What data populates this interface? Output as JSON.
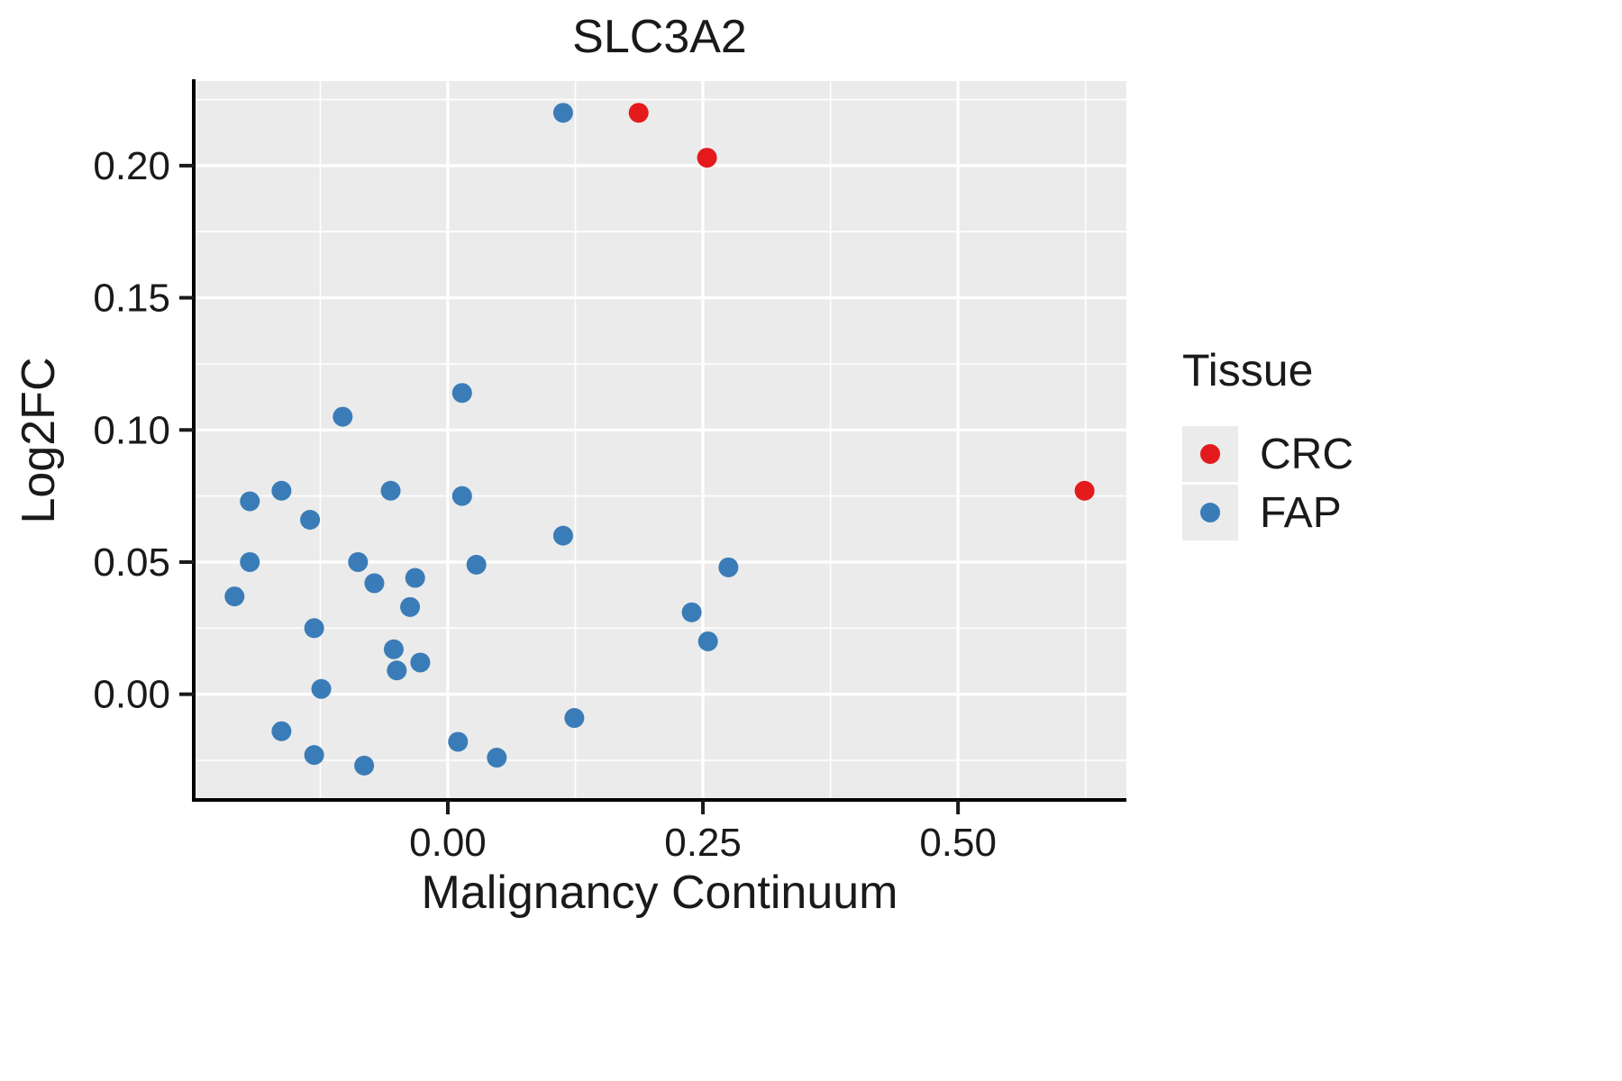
{
  "title": "SLC3A2",
  "chart_data": {
    "type": "scatter",
    "title": "SLC3A2",
    "xlabel": "Malignancy Continuum",
    "ylabel": "Log2FC",
    "xlim": [
      -0.249,
      0.665
    ],
    "ylim": [
      -0.04,
      0.232
    ],
    "x_ticks": [
      0.0,
      0.25,
      0.5
    ],
    "x_tick_labels": [
      "0.00",
      "0.25",
      "0.50"
    ],
    "y_ticks": [
      0.0,
      0.05,
      0.1,
      0.15,
      0.2
    ],
    "y_tick_labels": [
      "0.00",
      "0.05",
      "0.10",
      "0.15",
      "0.20"
    ],
    "x_minor_ticks": [
      -0.125,
      0.125,
      0.375,
      0.625
    ],
    "y_minor_ticks": [
      -0.025,
      0.025,
      0.075,
      0.125,
      0.175,
      0.225
    ],
    "grid": true,
    "panel_bg": "#EBEBEB",
    "grid_color": "#FFFFFF",
    "point_radius": 11,
    "legend": {
      "title": "Tissue",
      "position": "right",
      "entries": [
        {
          "label": "CRC",
          "color": "#E41A1C"
        },
        {
          "label": "FAP",
          "color": "#3A7CB8"
        }
      ]
    },
    "series": [
      {
        "name": "CRC",
        "color": "#E41A1C",
        "points": [
          [
            0.187,
            0.22
          ],
          [
            0.254,
            0.203
          ],
          [
            0.624,
            0.077
          ]
        ]
      },
      {
        "name": "FAP",
        "color": "#3A7CB8",
        "points": [
          [
            0.113,
            0.22
          ],
          [
            0.014,
            0.114
          ],
          [
            -0.103,
            0.105
          ],
          [
            -0.163,
            0.077
          ],
          [
            -0.056,
            0.077
          ],
          [
            0.014,
            0.075
          ],
          [
            -0.194,
            0.073
          ],
          [
            -0.135,
            0.066
          ],
          [
            0.113,
            0.06
          ],
          [
            -0.194,
            0.05
          ],
          [
            -0.088,
            0.05
          ],
          [
            0.028,
            0.049
          ],
          [
            0.275,
            0.048
          ],
          [
            -0.032,
            0.044
          ],
          [
            -0.072,
            0.042
          ],
          [
            -0.209,
            0.037
          ],
          [
            -0.037,
            0.033
          ],
          [
            0.239,
            0.031
          ],
          [
            -0.131,
            0.025
          ],
          [
            0.255,
            0.02
          ],
          [
            -0.053,
            0.017
          ],
          [
            -0.027,
            0.012
          ],
          [
            -0.05,
            0.009
          ],
          [
            -0.124,
            0.002
          ],
          [
            0.124,
            -0.009
          ],
          [
            -0.163,
            -0.014
          ],
          [
            0.01,
            -0.018
          ],
          [
            -0.131,
            -0.023
          ],
          [
            0.048,
            -0.024
          ],
          [
            -0.082,
            -0.027
          ]
        ]
      }
    ]
  }
}
